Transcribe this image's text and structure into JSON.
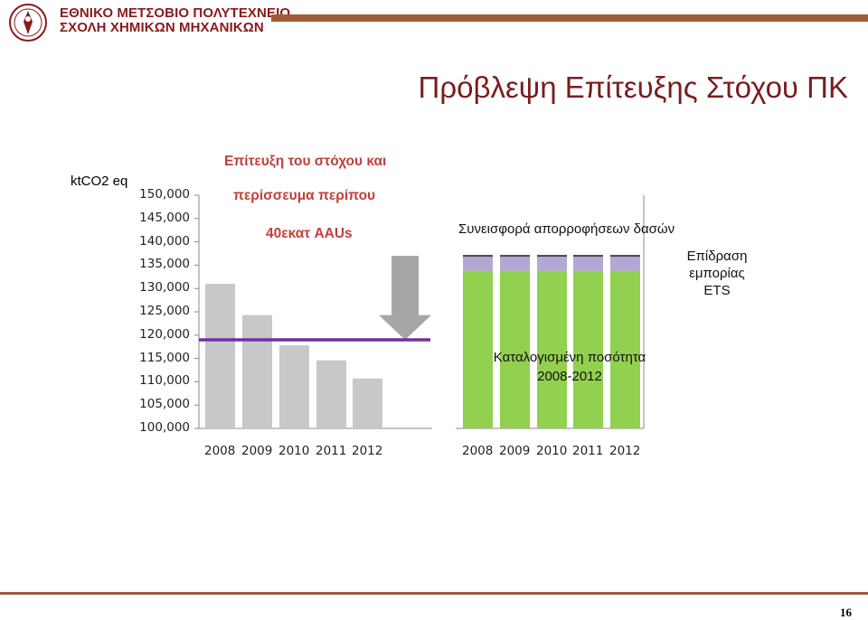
{
  "header": {
    "institution_line1": "ΕΘΝΙΚΟ ΜΕΤΣΟΒΙΟ ΠΟΛΥΤΕΧΝΕΙΟ",
    "institution_line2": "ΣΧΟΛΗ ΧΗΜΙΚΩΝ ΜΗΧΑΝΙΚΩΝ",
    "title": "Πρόβλεψη Επίτευξης Στόχου ΠΚ"
  },
  "colors": {
    "accent": "#a05a3a",
    "title": "#7a1d1d",
    "gray_bar": "#c8c8c8",
    "big_bar": "#a6a6a6",
    "green": "#92d050",
    "lavender": "#b4a7d6",
    "cap": "#4a4a4a",
    "target_line": "#7030a0",
    "annotation_red": "#c0403c"
  },
  "chart_data": {
    "type": "bar",
    "unit_label": "ktCO2 eq",
    "ylim": [
      100000,
      150000
    ],
    "yticks": [
      "150,000",
      "145,000",
      "140,000",
      "135,000",
      "130,000",
      "125,000",
      "120,000",
      "115,000",
      "110,000",
      "105,000",
      "100,000"
    ],
    "left_panel": {
      "categories": [
        "2008",
        "2009",
        "2010",
        "2011",
        "2012"
      ],
      "values": [
        131000,
        124300,
        117800,
        114600,
        110700
      ],
      "target_line": 119000,
      "five_year_total_bar": 137000,
      "arrow_to": 119000
    },
    "right_panel": {
      "categories": [
        "2008",
        "2009",
        "2010",
        "2011",
        "2012"
      ],
      "series": [
        {
          "name": "Καταλογισμένη ποσότητα 2008-2012",
          "values": [
            133800,
            133800,
            133800,
            133800,
            133800
          ]
        },
        {
          "name": "Συνεισφορά απορροφήσεων δασών",
          "values": [
            3000,
            3000,
            3000,
            3000,
            3000
          ]
        },
        {
          "name": "Επίδραση εμπορίας ETS",
          "values": [
            400,
            400,
            400,
            400,
            400
          ]
        }
      ]
    },
    "annotations": {
      "achievement_line1": "Επίτευξη του στόχου και",
      "achievement_line2": "περίσσευμα περίπου",
      "achievement_line3": "40εκατ AAUs",
      "forest": "Συνεισφορά απορροφήσεων δασών",
      "ets_line1": "Επίδραση",
      "ets_line2": "εμπορίας",
      "ets_line3": "ETS",
      "assigned_line1": "Καταλογισμένη ποσότητα",
      "assigned_line2": "2008-2012"
    }
  },
  "footer": {
    "page_number": "16"
  }
}
